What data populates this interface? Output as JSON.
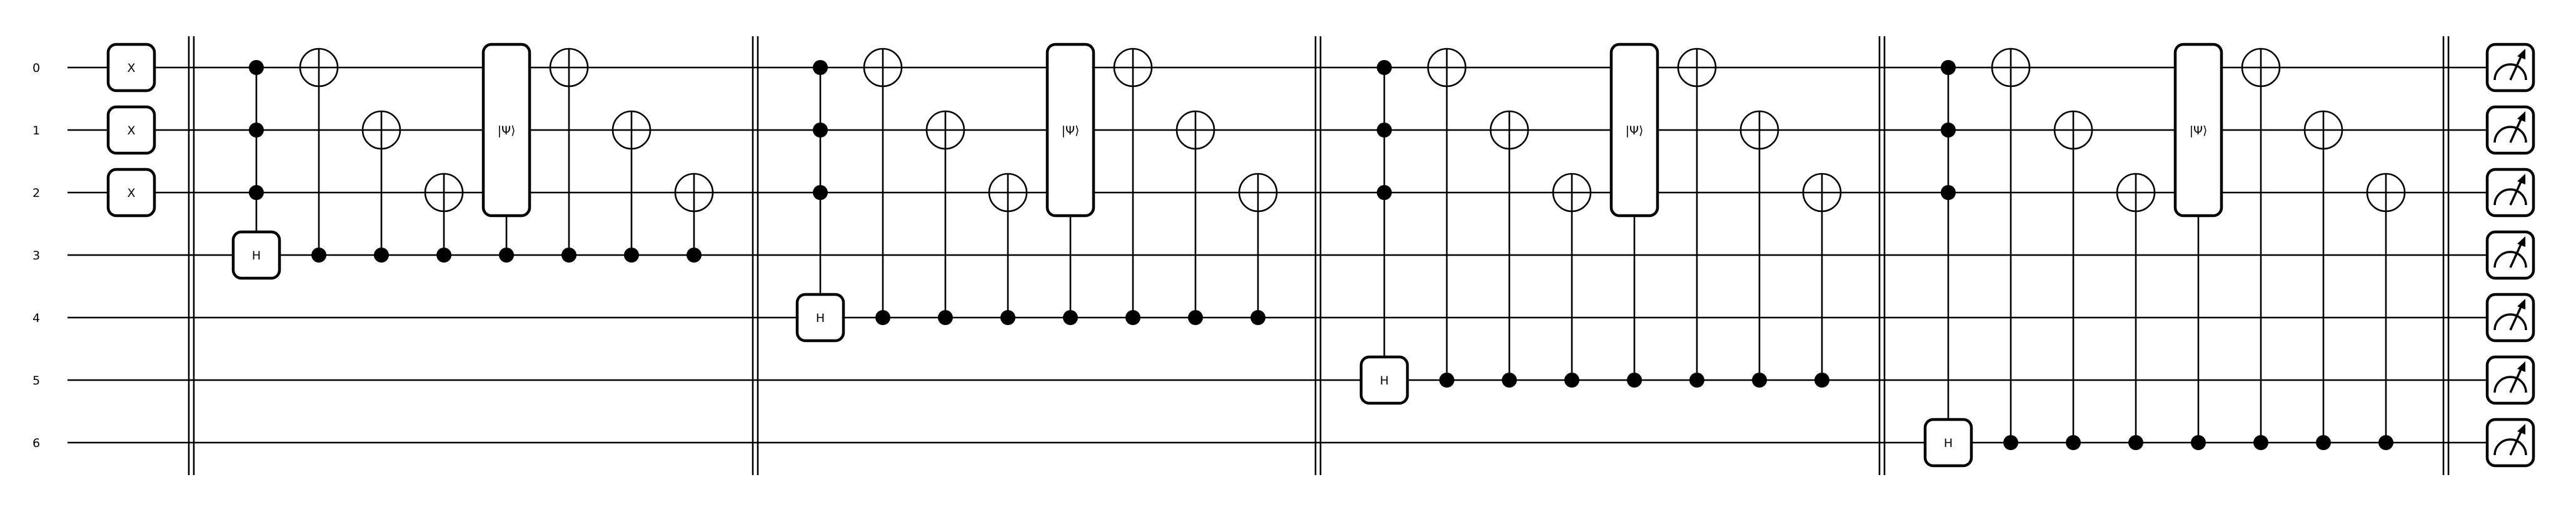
{
  "wires": [
    "0",
    "1",
    "2",
    "3",
    "4",
    "5",
    "6"
  ],
  "initial_gates": [
    {
      "wire": 0,
      "label": "X"
    },
    {
      "wire": 1,
      "label": "X"
    },
    {
      "wire": 2,
      "label": "X"
    }
  ],
  "blocks": [
    {
      "target": 3,
      "h_label": "H",
      "psi_label": "|Ψ⟩"
    },
    {
      "target": 4,
      "h_label": "H",
      "psi_label": "|Ψ⟩"
    },
    {
      "target": 5,
      "h_label": "H",
      "psi_label": "|Ψ⟩"
    },
    {
      "target": 6,
      "h_label": "H",
      "psi_label": "|Ψ⟩"
    }
  ],
  "block_sequence": [
    "toffoli",
    "cnot-0",
    "cnot-1",
    "cnot-2",
    "psi",
    "cnot-0",
    "cnot-1",
    "cnot-2"
  ],
  "measurement_wires": [
    0,
    1,
    2,
    3,
    4,
    5,
    6
  ],
  "icons": {
    "measure": "meter-icon"
  }
}
